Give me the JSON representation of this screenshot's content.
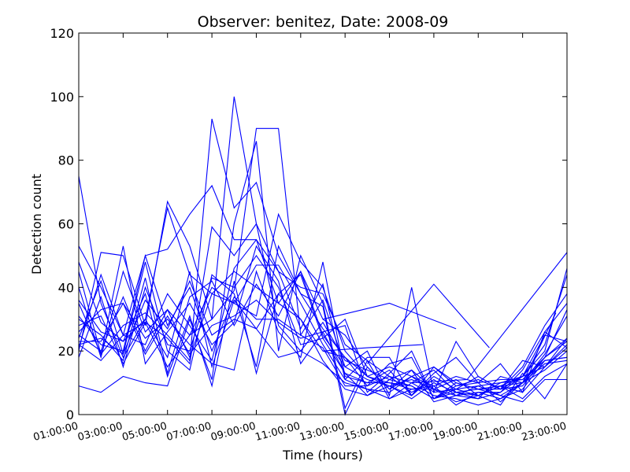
{
  "chart_data": {
    "type": "line",
    "title": "Observer: benitez, Date: 2008-09",
    "xlabel": "Time (hours)",
    "ylabel": "Detection count",
    "xlim": [
      1,
      23
    ],
    "ylim": [
      0,
      120
    ],
    "yticks": [
      0,
      20,
      40,
      60,
      80,
      100,
      120
    ],
    "xticks": [
      {
        "value": 1,
        "label": "01:00:00"
      },
      {
        "value": 3,
        "label": "03:00:00"
      },
      {
        "value": 5,
        "label": "05:00:00"
      },
      {
        "value": 7,
        "label": "07:00:00"
      },
      {
        "value": 9,
        "label": "09:00:00"
      },
      {
        "value": 11,
        "label": "11:00:00"
      },
      {
        "value": 13,
        "label": "13:00:00"
      },
      {
        "value": 15,
        "label": "15:00:00"
      },
      {
        "value": 17,
        "label": "17:00:00"
      },
      {
        "value": 19,
        "label": "19:00:00"
      },
      {
        "value": 21,
        "label": "21:00:00"
      },
      {
        "value": 23,
        "label": "23:00:00"
      }
    ],
    "grid": false,
    "line_color": "#0000ff",
    "series": [
      {
        "x": [
          1,
          2,
          3,
          4,
          5,
          6,
          7,
          8,
          9,
          10,
          11,
          12,
          13,
          14,
          15,
          16,
          17,
          18,
          19,
          20,
          21,
          22,
          23
        ],
        "y": [
          75,
          35,
          18,
          30,
          65,
          44,
          38,
          35,
          31,
          63,
          48,
          40,
          20,
          12,
          9,
          6,
          12,
          8,
          6,
          9,
          12,
          22,
          44
        ]
      },
      {
        "x": [
          1,
          2,
          3,
          4,
          5,
          6,
          7,
          8,
          9,
          10,
          11,
          12,
          13,
          14,
          15,
          16,
          17,
          18,
          19,
          20,
          21,
          22,
          23
        ],
        "y": [
          53,
          40,
          25,
          50,
          52,
          63,
          72,
          55,
          55,
          35,
          45,
          30,
          25,
          15,
          8,
          12,
          15,
          9,
          11,
          8,
          15,
          28,
          38
        ]
      },
      {
        "x": [
          1,
          2,
          3,
          4,
          5,
          6,
          7,
          8,
          9,
          10,
          11,
          12,
          13,
          14,
          15,
          16,
          17,
          18,
          19,
          20,
          21,
          22,
          23
        ],
        "y": [
          20,
          51,
          50,
          28,
          67,
          53,
          30,
          100,
          60,
          45,
          40,
          38,
          22,
          17,
          5,
          10,
          14,
          7,
          5,
          12,
          10,
          18,
          33
        ]
      },
      {
        "x": [
          1,
          2,
          3,
          4,
          5,
          6,
          7,
          8,
          9,
          10,
          11,
          12,
          13,
          14,
          15,
          16,
          17,
          18,
          19,
          20,
          21,
          22,
          23
        ],
        "y": [
          22,
          17,
          25,
          29,
          15,
          25,
          30,
          39,
          90,
          90,
          25,
          36,
          15,
          11,
          9,
          5,
          10,
          7,
          6,
          9,
          7,
          15,
          22
        ]
      },
      {
        "x": [
          1,
          2,
          3,
          4,
          5,
          6,
          7,
          8,
          9,
          10,
          11,
          12,
          13,
          14,
          15,
          16,
          17,
          18,
          19,
          20,
          21,
          22,
          23
        ],
        "y": [
          45,
          19,
          28,
          32,
          25,
          17,
          93,
          65,
          73,
          50,
          38,
          27,
          18,
          9,
          12,
          7,
          11,
          6,
          7,
          7,
          12,
          20,
          46
        ]
      },
      {
        "x": [
          1,
          2,
          3,
          4,
          5,
          6,
          7,
          8,
          9,
          10,
          11,
          12,
          13,
          14,
          15,
          16,
          17,
          18,
          19,
          20,
          21,
          22,
          23
        ],
        "y": [
          18,
          37,
          15,
          40,
          22,
          20,
          43,
          40,
          50,
          40,
          22,
          24,
          30,
          12,
          10,
          9,
          5,
          8,
          9,
          10,
          11,
          18,
          24
        ]
      },
      {
        "x": [
          1,
          2,
          3,
          4,
          5,
          6,
          7,
          8,
          9,
          10,
          11,
          12,
          13,
          14,
          15,
          16,
          17,
          18,
          19,
          20,
          21,
          22,
          23
        ],
        "y": [
          9,
          7,
          12,
          10,
          9,
          30,
          11,
          60,
          86,
          20,
          50,
          35,
          2,
          17,
          12,
          10,
          6,
          5,
          3,
          5,
          8,
          17,
          18
        ]
      },
      {
        "x": [
          1,
          2,
          3,
          4,
          5,
          6,
          7,
          8,
          9,
          10,
          11,
          12,
          13,
          14,
          15,
          16,
          17,
          18,
          19,
          20,
          21,
          22,
          23
        ],
        "y": [
          30,
          25,
          17,
          43,
          13,
          37,
          42,
          28,
          41,
          31,
          45,
          25,
          15,
          20,
          6,
          40,
          7,
          23,
          12,
          8,
          17,
          15,
          21
        ]
      },
      {
        "x": [
          1,
          2,
          3,
          4,
          5,
          6,
          7,
          8,
          9,
          10,
          11,
          12,
          13,
          14,
          15,
          16,
          17,
          18,
          19,
          20,
          21,
          22,
          23
        ],
        "y": [
          24,
          42,
          19,
          48,
          20,
          14,
          44,
          38,
          15,
          53,
          38,
          34,
          0,
          15,
          8,
          14,
          4,
          6,
          5,
          7,
          14,
          26,
          35
        ]
      },
      {
        "x": [
          1,
          2,
          3,
          4,
          5,
          6,
          7,
          8,
          9,
          10,
          11,
          12,
          13,
          14,
          15,
          16,
          17,
          18,
          19,
          20,
          21,
          22,
          23
        ],
        "y": [
          36,
          26,
          23,
          30,
          18,
          45,
          15,
          36,
          27,
          18,
          20,
          16,
          10,
          8,
          5,
          8,
          9,
          3,
          7,
          5,
          10,
          14,
          20
        ]
      },
      {
        "x": [
          1,
          2,
          3,
          4,
          5,
          6,
          7,
          8,
          9,
          10,
          11,
          12,
          13,
          14,
          15,
          16,
          17,
          18,
          19,
          20,
          21,
          22,
          23
        ],
        "y": [
          26,
          33,
          35,
          24,
          30,
          22,
          16,
          14,
          45,
          26,
          18,
          48,
          12,
          10,
          14,
          6,
          15,
          10,
          8,
          9,
          5,
          12,
          16
        ]
      },
      {
        "x": [
          1,
          2,
          3,
          4,
          5,
          6,
          7,
          8,
          9,
          10,
          11,
          12,
          13,
          14,
          15,
          16,
          17,
          18,
          19,
          20,
          21,
          22,
          23
        ],
        "y": [
          40,
          18,
          45,
          26,
          33,
          18,
          38,
          45,
          40,
          35,
          30,
          20,
          18,
          12,
          15,
          12,
          9,
          12,
          10,
          4,
          10,
          16,
          17
        ]
      },
      {
        "x": [
          1,
          2,
          3,
          4,
          5,
          6,
          7,
          8,
          9,
          10,
          11,
          12,
          13,
          14,
          15,
          16,
          17,
          18,
          19,
          20,
          21,
          22,
          23
        ],
        "y": [
          48,
          29,
          23,
          38,
          12,
          31,
          9,
          42,
          13,
          38,
          44,
          24,
          13,
          6,
          11,
          9,
          5,
          7,
          8,
          6,
          4,
          11,
          11
        ]
      },
      {
        "x": [
          1,
          2,
          3,
          4,
          5,
          6,
          7,
          8,
          9,
          10,
          11,
          12,
          13,
          14,
          15,
          16,
          17,
          18,
          19,
          20,
          21,
          22,
          23
        ],
        "y": [
          22,
          24,
          19,
          36,
          27,
          42,
          25,
          30,
          27,
          38,
          30,
          17,
          8,
          6,
          9,
          11,
          8,
          4,
          6,
          3,
          13,
          5,
          16
        ]
      },
      {
        "x": [
          1,
          2,
          3,
          4,
          5,
          6,
          7,
          8,
          9,
          10,
          11,
          12,
          13,
          14,
          15,
          16,
          17,
          18,
          19,
          20,
          21,
          22,
          23
        ],
        "y": [
          35,
          19,
          53,
          16,
          26,
          35,
          22,
          29,
          53,
          42,
          16,
          26,
          28,
          7,
          13,
          20,
          5,
          9,
          10,
          16,
          7,
          26,
          21
        ]
      },
      {
        "x": [
          1,
          2,
          3,
          4,
          5,
          6,
          7,
          8,
          9,
          10,
          11,
          12,
          13,
          14,
          15,
          16,
          17,
          18,
          19,
          20,
          21,
          22,
          23
        ],
        "y": [
          28,
          31,
          16,
          29,
          24,
          16,
          59,
          50,
          60,
          28,
          20,
          29,
          17,
          14,
          11,
          14,
          8,
          11,
          6,
          10,
          12,
          25,
          23
        ]
      },
      {
        "x": [
          1,
          2,
          3,
          4,
          5,
          6,
          7,
          8,
          9,
          10,
          11,
          12,
          13,
          14,
          15,
          16,
          17,
          18,
          19,
          20,
          21,
          22,
          23
        ],
        "y": [
          25,
          20,
          37,
          20,
          33,
          25,
          40,
          35,
          47,
          47,
          35,
          22,
          11,
          18,
          18,
          6,
          13,
          18,
          10,
          11,
          11,
          17,
          18
        ]
      },
      {
        "x": [
          1,
          2,
          3,
          4,
          5,
          6,
          7,
          8,
          9,
          10,
          11,
          12,
          13,
          14,
          15,
          16,
          17,
          18,
          19,
          20,
          21,
          22,
          23
        ],
        "y": [
          31,
          22,
          20,
          50,
          28,
          40,
          20,
          37,
          30,
          30,
          25,
          21,
          9,
          9,
          16,
          18,
          5,
          10,
          8,
          8,
          12,
          15,
          24
        ]
      },
      {
        "x": [
          1,
          2,
          3,
          4,
          5,
          6,
          7,
          8,
          9,
          10,
          11,
          12,
          13,
          14,
          15,
          16,
          17,
          18,
          19,
          20,
          21,
          22,
          23
        ],
        "y": [
          21,
          44,
          25,
          22,
          38,
          28,
          17,
          46,
          55,
          45,
          27,
          41,
          11,
          8,
          7,
          12,
          7,
          8,
          12,
          8,
          9,
          18,
          23
        ]
      },
      {
        "x": [
          1,
          2,
          3,
          4,
          5,
          6,
          7,
          8,
          9,
          10,
          11,
          12,
          13,
          14,
          15,
          16,
          17,
          18,
          19,
          20,
          21,
          22,
          23
        ],
        "y": [
          23,
          23,
          35,
          19,
          31,
          19,
          28,
          31,
          36,
          29,
          24,
          26,
          13,
          10,
          10,
          8,
          8,
          6,
          9,
          6,
          10,
          19,
          31
        ]
      },
      {
        "x": [
          12,
          14,
          16.5
        ],
        "y": [
          20,
          21,
          22
        ]
      },
      {
        "x": [
          12,
          15,
          18
        ],
        "y": [
          30,
          35,
          27
        ]
      },
      {
        "x": [
          14,
          17,
          19.5
        ],
        "y": [
          16,
          41,
          21
        ]
      },
      {
        "x": [
          16,
          18.5,
          23
        ],
        "y": [
          10,
          11,
          51
        ]
      },
      {
        "x": [
          19,
          21,
          22.5
        ],
        "y": [
          8,
          10,
          32
        ]
      }
    ]
  }
}
